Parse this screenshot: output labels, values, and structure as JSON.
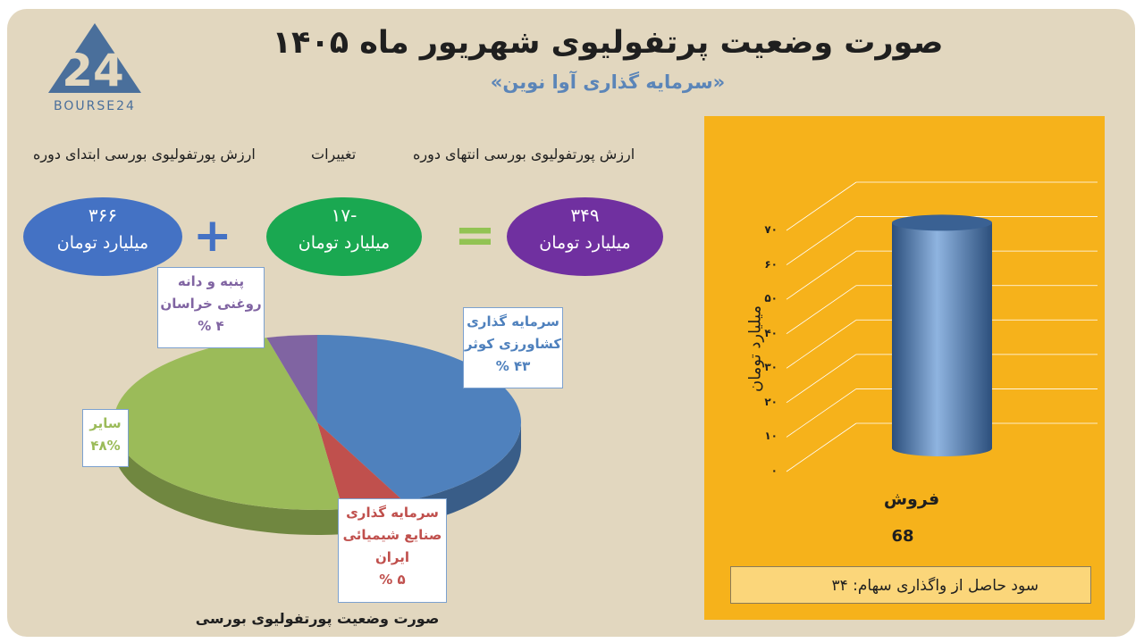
{
  "header": {
    "title": "صورت وضعیت پرتفولیوی شهریور ماه ۱۴۰۵",
    "subtitle": "«سرمایه گذاری آوا نوین»",
    "logo_text": "BOURSE24",
    "logo_digits": "24"
  },
  "summary": {
    "end_label": "ارزش پورتفولیوی بورسی انتهای دوره",
    "change_label": "تغییرات",
    "start_label": "ارزش پورتفولیوی بورسی ابتدای دوره",
    "start_value": "۳۶۶",
    "change_value": "-۱۷",
    "end_value": "۳۴۹",
    "unit": "میلیارد تومان",
    "plus_sign": "+",
    "equals_sign": "=",
    "colors": {
      "start": "#4472c4",
      "change": "#1aa851",
      "end": "#7030a0"
    }
  },
  "chart_data": [
    {
      "type": "pie",
      "title": "صورت وضعیت پورتفولیوی بورسی",
      "slices": [
        {
          "label": "سرمایه گذاری کشاورزی کوثر",
          "lines": [
            "سرمایه گذاری",
            "کشاورزی کوثر"
          ],
          "value": 43,
          "pct_text": "۴۳ %",
          "color": "#4f81bd",
          "text_color": "#4f81bd"
        },
        {
          "label": "سرمایه گذاری صنایع شیمیائی ایران",
          "lines": [
            "سرمایه گذاری",
            "صنایع شیمیائی",
            "ایران"
          ],
          "value": 5,
          "pct_text": "۵ %",
          "color": "#c0504d",
          "text_color": "#c0504d"
        },
        {
          "label": "سایر",
          "lines": [
            "سایر"
          ],
          "value": 48,
          "pct_text": "۴۸%",
          "color": "#9bbb59",
          "text_color": "#9bbb59"
        },
        {
          "label": "پنبه و دانه روغنی خراسان",
          "lines": [
            "پنبه و دانه",
            "روغنی خراسان"
          ],
          "value": 4,
          "pct_text": "۴ %",
          "color": "#8064a2",
          "text_color": "#8064a2"
        }
      ]
    },
    {
      "type": "bar",
      "categories": [
        "فروش"
      ],
      "values": [
        68
      ],
      "value_labels": [
        "68"
      ],
      "ylabel": "میلیارد تومان",
      "ylim": [
        0,
        70
      ],
      "yticks": [
        "۰",
        "۱۰",
        "۲۰",
        "۳۰",
        "۴۰",
        "۵۰",
        "۶۰",
        "۷۰"
      ],
      "background": "#f6b21b",
      "bar_color": "#4f81bd",
      "grid": true
    }
  ],
  "note": {
    "text": "سود حاصل از واگذاری سهام: ۳۴"
  }
}
